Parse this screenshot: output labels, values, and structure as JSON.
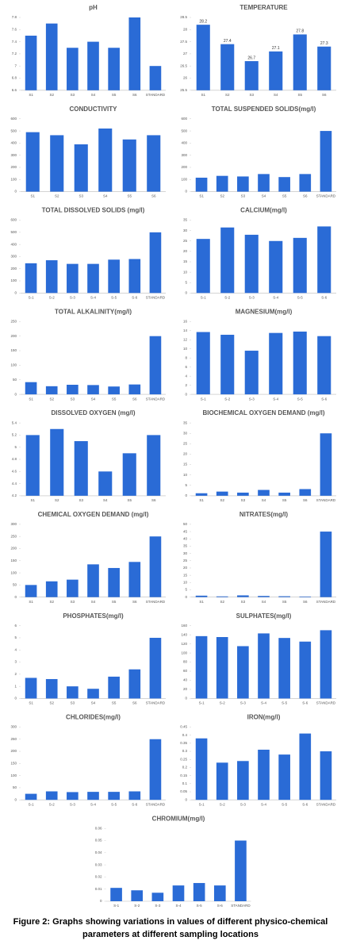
{
  "chart_data": [
    {
      "type": "bar",
      "title": "pH",
      "categories": [
        "S1",
        "S2",
        "S3",
        "S4",
        "S5",
        "S6",
        "STANDARD"
      ],
      "values": [
        7.5,
        7.7,
        7.3,
        7.4,
        7.3,
        7.8,
        7.0
      ],
      "color": "#2a6bd6",
      "ylim": [
        6.6,
        7.8
      ],
      "yticks": [
        6.6,
        6.8,
        7,
        7.2,
        7.4,
        7.6,
        7.8
      ],
      "grid": false
    },
    {
      "type": "bar",
      "title": "TEMPERATURE",
      "categories": [
        "S1",
        "S2",
        "S3",
        "S4",
        "S5",
        "S6"
      ],
      "values": [
        28.2,
        27.4,
        26.7,
        27.1,
        27.8,
        27.3
      ],
      "color": "#2a6bd6",
      "ylim": [
        25.5,
        28.5
      ],
      "yticks": [
        25.5,
        26,
        26.5,
        27,
        27.5,
        28,
        28.5
      ],
      "grid": false,
      "data_labels": true
    },
    {
      "type": "bar",
      "title": "CONDUCTIVITY",
      "categories": [
        "S1",
        "S2",
        "S3",
        "S4",
        "S5",
        "S6"
      ],
      "values": [
        490,
        465,
        390,
        520,
        430,
        465
      ],
      "color": "#2a6bd6",
      "ylim": [
        0,
        600
      ],
      "yticks": [
        0,
        100,
        200,
        300,
        400,
        500,
        600
      ],
      "grid": false
    },
    {
      "type": "bar",
      "title": "TOTAL SUSPENDED SOLIDS(mg/l)",
      "categories": [
        "S1",
        "S2",
        "S3",
        "S4",
        "S5",
        "S6",
        "STANDARD"
      ],
      "values": [
        115,
        130,
        125,
        145,
        120,
        145,
        500
      ],
      "color": "#2a6bd6",
      "ylim": [
        0,
        600
      ],
      "yticks": [
        0,
        100,
        200,
        300,
        400,
        500,
        600
      ],
      "grid": false
    },
    {
      "type": "bar",
      "title": "TOTAL DISSOLVED SOLIDS (mg/l)",
      "categories": [
        "S-1",
        "S-2",
        "S-3",
        "S-4",
        "S-5",
        "S-6",
        "STANDARD"
      ],
      "values": [
        245,
        270,
        240,
        240,
        275,
        280,
        500
      ],
      "color": "#2a6bd6",
      "ylim": [
        0,
        600
      ],
      "yticks": [
        0,
        100,
        200,
        300,
        400,
        500,
        600
      ],
      "grid": false
    },
    {
      "type": "bar",
      "title": "CALCIUM(mg/l)",
      "categories": [
        "S-1",
        "S-2",
        "S-3",
        "S-4",
        "S-5",
        "S-6"
      ],
      "values": [
        26,
        31.5,
        28,
        25,
        26.5,
        32
      ],
      "color": "#2a6bd6",
      "ylim": [
        0,
        35
      ],
      "yticks": [
        0,
        5,
        10,
        15,
        20,
        25,
        30,
        35
      ],
      "grid": false
    },
    {
      "type": "bar",
      "title": "TOTAL ALKALINITY(mg/l)",
      "categories": [
        "S1",
        "S2",
        "S3",
        "S4",
        "S5",
        "S6",
        "STANDARD"
      ],
      "values": [
        42,
        28,
        33,
        32,
        27,
        34,
        200
      ],
      "color": "#2a6bd6",
      "ylim": [
        0,
        250
      ],
      "yticks": [
        0,
        50,
        100,
        150,
        200,
        250
      ],
      "grid": false
    },
    {
      "type": "bar",
      "title": "MAGNESIUM(mg/l)",
      "categories": [
        "S-1",
        "S-2",
        "S-3",
        "S-4",
        "S-5",
        "S-6"
      ],
      "values": [
        13.7,
        13.1,
        9.6,
        13.5,
        13.8,
        12.8
      ],
      "color": "#2a6bd6",
      "ylim": [
        0,
        16
      ],
      "yticks": [
        0,
        2,
        4,
        6,
        8,
        10,
        12,
        14,
        16
      ],
      "grid": false
    },
    {
      "type": "bar",
      "title": "DISSOLVED OXYGEN (mg/l)",
      "categories": [
        "S1",
        "S2",
        "S3",
        "S4",
        "S5",
        "S6"
      ],
      "values": [
        5.2,
        5.3,
        5.1,
        4.6,
        4.9,
        5.2
      ],
      "color": "#2a6bd6",
      "ylim": [
        4.2,
        5.4
      ],
      "yticks": [
        4.2,
        4.4,
        4.6,
        4.8,
        5,
        5.2,
        5.4
      ],
      "grid": false
    },
    {
      "type": "bar",
      "title": "BIOCHEMICAL OXYGEN DEMAND (mg/l)",
      "categories": [
        "S1",
        "S2",
        "S3",
        "S4",
        "S5",
        "S6",
        "STANDARD"
      ],
      "values": [
        1.2,
        2,
        1.5,
        2.8,
        1.5,
        3.2,
        30
      ],
      "color": "#2a6bd6",
      "ylim": [
        0,
        35
      ],
      "yticks": [
        0,
        5,
        10,
        15,
        20,
        25,
        30,
        35
      ],
      "grid": false
    },
    {
      "type": "bar",
      "title": "CHEMICAL OXYGEN DEMAND (mg/l)",
      "categories": [
        "S1",
        "S2",
        "S3",
        "S4",
        "S5",
        "S6",
        "STANDARD"
      ],
      "values": [
        50,
        65,
        72,
        135,
        120,
        145,
        250
      ],
      "color": "#2a6bd6",
      "ylim": [
        0,
        300
      ],
      "yticks": [
        0,
        50,
        100,
        150,
        200,
        250,
        300
      ],
      "grid": false
    },
    {
      "type": "bar",
      "title": "NITRATES(mg/l)",
      "categories": [
        "S1",
        "S2",
        "S3",
        "S4",
        "S5",
        "S6",
        "STANDARD"
      ],
      "values": [
        1,
        0.5,
        1.2,
        0.8,
        0.6,
        0.4,
        45
      ],
      "color": "#2a6bd6",
      "ylim": [
        0,
        50
      ],
      "yticks": [
        0,
        5,
        10,
        15,
        20,
        25,
        30,
        35,
        40,
        45,
        50
      ],
      "grid": false
    },
    {
      "type": "bar",
      "title": "PHOSPHATES(mg/l)",
      "categories": [
        "S1",
        "S2",
        "S3",
        "S4",
        "S5",
        "S6",
        "STANDARD"
      ],
      "values": [
        1.7,
        1.6,
        1.0,
        0.8,
        1.8,
        2.4,
        5
      ],
      "color": "#2a6bd6",
      "ylim": [
        0,
        6
      ],
      "yticks": [
        0,
        1,
        2,
        3,
        4,
        5,
        6
      ],
      "grid": false
    },
    {
      "type": "bar",
      "title": "SULPHATES(mg/l)",
      "categories": [
        "S-1",
        "S-2",
        "S-3",
        "S-4",
        "S-5",
        "S-6",
        "STANDARD"
      ],
      "values": [
        137,
        135,
        115,
        143,
        133,
        125,
        150
      ],
      "color": "#2a6bd6",
      "ylim": [
        0,
        160
      ],
      "yticks": [
        0,
        20,
        40,
        60,
        80,
        100,
        120,
        140,
        160
      ],
      "grid": false
    },
    {
      "type": "bar",
      "title": "CHLORIDES(mg/l)",
      "categories": [
        "S-1",
        "S-2",
        "S-3",
        "S-4",
        "S-5",
        "S-6",
        "STANDARD"
      ],
      "values": [
        25,
        35,
        32,
        33,
        33,
        35,
        250
      ],
      "color": "#2a6bd6",
      "ylim": [
        0,
        300
      ],
      "yticks": [
        0,
        50,
        100,
        150,
        200,
        250,
        300
      ],
      "grid": false
    },
    {
      "type": "bar",
      "title": "IRON(mg/l)",
      "categories": [
        "S-1",
        "S-2",
        "S-3",
        "S-4",
        "S-5",
        "S-6",
        "STANDARD"
      ],
      "values": [
        0.38,
        0.23,
        0.24,
        0.31,
        0.28,
        0.41,
        0.3
      ],
      "color": "#2a6bd6",
      "ylim": [
        0,
        0.45
      ],
      "yticks": [
        0,
        0.05,
        0.1,
        0.15,
        0.2,
        0.25,
        0.3,
        0.35,
        0.4,
        0.45
      ],
      "grid": false
    },
    {
      "type": "bar",
      "title": "CHROMIUM(mg/l)",
      "categories": [
        "S-1",
        "S-2",
        "S-3",
        "S-4",
        "S-5",
        "S-6",
        "STANDARD"
      ],
      "values": [
        0.011,
        0.009,
        0.007,
        0.013,
        0.015,
        0.013,
        0.05
      ],
      "color": "#2a6bd6",
      "ylim": [
        0,
        0.06
      ],
      "yticks": [
        0,
        0.01,
        0.02,
        0.03,
        0.04,
        0.05,
        0.06
      ],
      "grid": false
    }
  ],
  "caption": "Figure 2: Graphs showing variations in values of different physico-chemical parameters at different sampling locations"
}
